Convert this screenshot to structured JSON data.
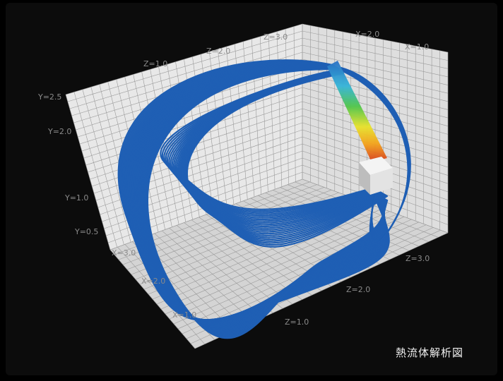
{
  "caption": "熱流体解析図",
  "labels": {
    "z_back_top": [
      "Z=3.0",
      "Z=2.0",
      "Z=1.0"
    ],
    "x_back_top": [
      "X=2.0",
      "X=1.0"
    ],
    "y_left": [
      "Y=2.5",
      "Y=2.0",
      "Y=1.0",
      "Y=0.5"
    ],
    "x_floor": [
      "X=3.0",
      "X=2.0",
      "X=1.0"
    ],
    "z_floor": [
      "Z=3.0",
      "Z=2.0",
      "Z=1.0"
    ]
  },
  "colors": {
    "streamline": "#1f5fb4",
    "grid_face": "#e6e6e6",
    "grid_line": "#9a9a9a",
    "background": "#0c0c0c"
  }
}
